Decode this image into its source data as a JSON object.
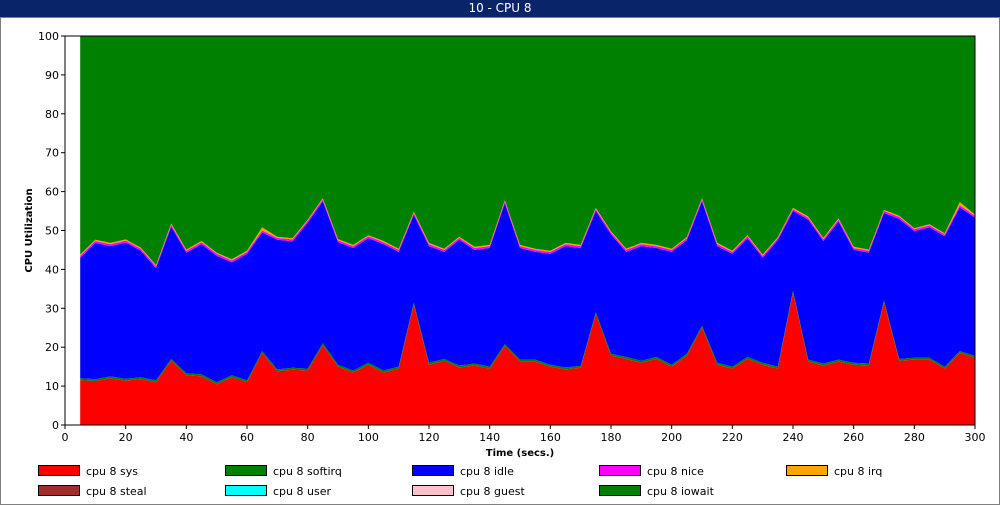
{
  "window": {
    "title": "10 - CPU 8"
  },
  "chart_data": {
    "type": "area",
    "stacked": true,
    "title": "",
    "xlabel": "Time (secs.)",
    "ylabel": "CPU Utilization",
    "xlim": [
      0,
      300
    ],
    "ylim": [
      0,
      100
    ],
    "xticks": [
      0,
      20,
      40,
      60,
      80,
      100,
      120,
      140,
      160,
      180,
      200,
      220,
      240,
      260,
      280,
      300
    ],
    "yticks": [
      0,
      10,
      20,
      30,
      40,
      50,
      60,
      70,
      80,
      90,
      100
    ],
    "grid": false,
    "legend_position": "bottom",
    "x": [
      5,
      10,
      15,
      20,
      25,
      30,
      35,
      40,
      45,
      50,
      55,
      60,
      65,
      70,
      75,
      80,
      85,
      90,
      95,
      100,
      105,
      110,
      115,
      120,
      125,
      130,
      135,
      140,
      145,
      150,
      155,
      160,
      165,
      170,
      175,
      180,
      185,
      190,
      195,
      200,
      205,
      210,
      215,
      220,
      225,
      230,
      235,
      240,
      245,
      250,
      255,
      260,
      265,
      270,
      275,
      280,
      285,
      290,
      295,
      300
    ],
    "series": [
      {
        "name": "cpu 8 sys",
        "color": "#ff0000",
        "values": [
          11.5,
          11.3,
          12,
          11.4,
          11.8,
          11,
          16.5,
          12.8,
          12.5,
          10.5,
          12.3,
          11,
          18.5,
          13.8,
          14.2,
          14,
          20.5,
          15,
          13.5,
          15.5,
          13.5,
          14.5,
          31,
          15.5,
          16.5,
          14.8,
          15.3,
          14.5,
          20.3,
          16.3,
          16.3,
          15,
          14.3,
          14.7,
          28.5,
          17.8,
          17,
          16,
          17,
          15,
          17.8,
          25,
          15.5,
          14.5,
          17,
          15.5,
          14.5,
          34,
          16.3,
          15.3,
          16.3,
          15.5,
          15.3,
          31.5,
          16.5,
          16.8,
          16.8,
          14.5,
          18.5,
          17.3
        ]
      },
      {
        "name": "cpu 8 softirq",
        "color": "#008000",
        "values": [
          0.5,
          0.5,
          0.5,
          0.5,
          0.5,
          0.5,
          0.5,
          0.5,
          0.5,
          0.5,
          0.5,
          0.5,
          0.5,
          0.5,
          0.5,
          0.5,
          0.5,
          0.5,
          0.5,
          0.5,
          0.5,
          0.5,
          0.5,
          0.5,
          0.5,
          0.5,
          0.5,
          0.5,
          0.5,
          0.5,
          0.5,
          0.5,
          0.5,
          0.5,
          0.5,
          0.5,
          0.5,
          0.5,
          0.5,
          0.5,
          0.5,
          0.5,
          0.5,
          0.5,
          0.5,
          0.5,
          0.5,
          0.5,
          0.5,
          0.5,
          0.5,
          0.5,
          0.5,
          0.5,
          0.5,
          0.5,
          0.5,
          0.5,
          0.5,
          0.5
        ]
      },
      {
        "name": "cpu 8 idle",
        "color": "#0000ff",
        "values": [
          31,
          35,
          33.5,
          35,
          32.5,
          28.8,
          34,
          31,
          33.5,
          32.5,
          29,
          32.5,
          30.5,
          33.3,
          32.5,
          37.5,
          36.5,
          31.5,
          31.5,
          32,
          32.5,
          29.5,
          22.5,
          30,
          27.5,
          32.3,
          29.2,
          30.5,
          36.2,
          28.7,
          27.7,
          28.5,
          31.2,
          30.3,
          26,
          30.7,
          27,
          29.5,
          28,
          29,
          29.2,
          32,
          30,
          29,
          30.5,
          27,
          32.5,
          20.5,
          36,
          31.5,
          35.5,
          29,
          28.5,
          22.5,
          36,
          32.5,
          33.5,
          33.5,
          37,
          35.5
        ]
      },
      {
        "name": "cpu 8 nice",
        "color": "#ff00ff",
        "values": [
          0.5,
          0.5,
          0.5,
          0.5,
          0.5,
          0.5,
          0.5,
          0.5,
          0.5,
          0.5,
          0.5,
          0.5,
          0.5,
          0.5,
          0.5,
          0.5,
          0.5,
          0.5,
          0.5,
          0.5,
          0.5,
          0.5,
          0.5,
          0.5,
          0.5,
          0.5,
          0.5,
          0.5,
          0.5,
          0.5,
          0.5,
          0.5,
          0.5,
          0.5,
          0.5,
          0.5,
          0.5,
          0.5,
          0.5,
          0.5,
          0.5,
          0.5,
          0.5,
          0.5,
          0.5,
          0.5,
          0.5,
          0.5,
          0.5,
          0.5,
          0.5,
          0.5,
          0.5,
          0.5,
          0.5,
          0.5,
          0.5,
          0.5,
          0.5,
          0.5
        ]
      },
      {
        "name": "cpu 8 irq",
        "color": "#ffa500",
        "values": [
          0.3,
          0.3,
          0.3,
          0.3,
          0.3,
          0.3,
          0.3,
          0.3,
          0.3,
          0.3,
          0.3,
          0.3,
          0.8,
          0.3,
          0.3,
          0.3,
          0.3,
          0.3,
          0.3,
          0.3,
          0.3,
          0.3,
          0.3,
          0.3,
          0.3,
          0.3,
          0.3,
          0.3,
          0.3,
          0.3,
          0.3,
          0.3,
          0.3,
          0.3,
          0.3,
          0.3,
          0.3,
          0.3,
          0.3,
          0.3,
          0.3,
          0.3,
          0.3,
          0.3,
          0.3,
          0.3,
          0.3,
          0.3,
          0.3,
          0.3,
          0.3,
          0.3,
          0.3,
          0.3,
          0.3,
          0.3,
          0.3,
          0.3,
          0.8,
          0.3
        ]
      },
      {
        "name": "cpu 8 steal",
        "color": "#a52a2a",
        "values": [
          0,
          0,
          0,
          0,
          0,
          0,
          0,
          0,
          0,
          0,
          0,
          0,
          0,
          0,
          0,
          0,
          0,
          0,
          0,
          0,
          0,
          0,
          0,
          0,
          0,
          0,
          0,
          0,
          0,
          0,
          0,
          0,
          0,
          0,
          0,
          0,
          0,
          0,
          0,
          0,
          0,
          0,
          0,
          0,
          0,
          0,
          0,
          0,
          0,
          0,
          0,
          0,
          0,
          0,
          0,
          0,
          0,
          0,
          0,
          0
        ]
      },
      {
        "name": "cpu 8 user",
        "color": "#00ffff",
        "values": [
          0,
          0,
          0,
          0,
          0,
          0,
          0,
          0,
          0,
          0,
          0,
          0,
          0,
          0,
          0,
          0,
          0,
          0,
          0,
          0,
          0,
          0,
          0,
          0,
          0,
          0,
          0,
          0,
          0,
          0,
          0,
          0,
          0,
          0,
          0,
          0,
          0,
          0,
          0,
          0,
          0,
          0,
          0,
          0,
          0,
          0,
          0,
          0,
          0,
          0,
          0,
          0,
          0,
          0,
          0,
          0,
          0,
          0,
          0,
          0
        ]
      },
      {
        "name": "cpu 8 guest",
        "color": "#ffc0cb",
        "values": [
          0,
          0,
          0,
          0,
          0,
          0,
          0,
          0,
          0,
          0,
          0,
          0,
          0,
          0,
          0,
          0,
          0,
          0,
          0,
          0,
          0,
          0,
          0,
          0,
          0,
          0,
          0,
          0,
          0,
          0,
          0,
          0,
          0,
          0,
          0,
          0,
          0,
          0,
          0,
          0,
          0,
          0,
          0,
          0,
          0,
          0,
          0,
          0,
          0,
          0,
          0,
          0,
          0,
          0,
          0,
          0,
          0,
          0,
          0,
          0
        ]
      },
      {
        "name": "cpu 8 iowait",
        "color": "#008000",
        "values": [
          56.2,
          52.4,
          53.2,
          52.3,
          54.4,
          58.9,
          48.2,
          54.9,
          52.7,
          55.7,
          57.4,
          55.2,
          49.2,
          51.6,
          52,
          47.2,
          41.7,
          52.2,
          53.7,
          51.2,
          52.7,
          54.7,
          45.2,
          53.2,
          54.7,
          51.6,
          54.2,
          53.7,
          42.2,
          53.7,
          54.7,
          55.2,
          53.2,
          53.7,
          44.2,
          50.2,
          54.7,
          53.2,
          53.7,
          54.7,
          51.7,
          41.7,
          53.2,
          55.2,
          51.2,
          56.2,
          51.7,
          44.2,
          46.4,
          51.9,
          46.9,
          54.2,
          54.9,
          44.7,
          46.2,
          49.4,
          48.4,
          50.7,
          42.7,
          45.9
        ]
      }
    ]
  }
}
